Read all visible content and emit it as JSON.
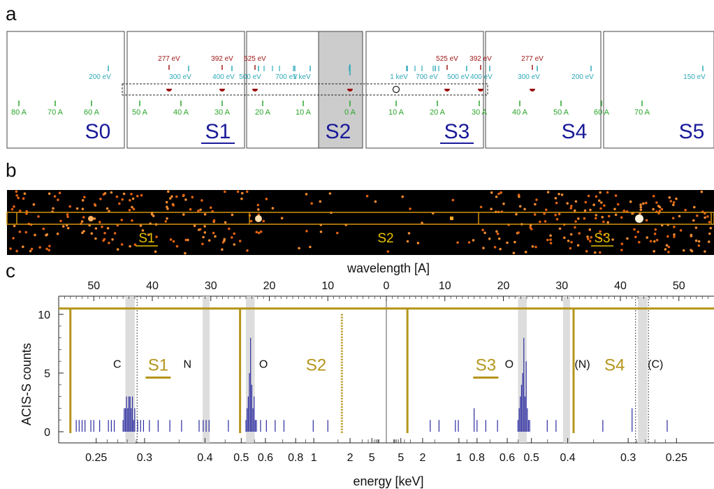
{
  "panels": {
    "a": "a",
    "b": "b",
    "c": "c"
  },
  "colors": {
    "chip_label": "#1a1a99",
    "wavelength_tick": "#2aa52a",
    "energy_tick_teal": "#2ea8b8",
    "energy_tick_red": "#a01818",
    "marker_red": "#9a1010",
    "s2_fill": "#cccccc",
    "grating": "#b5951c",
    "spectrum_line": "#2a2aa0",
    "band_gray": "#d4d4d4",
    "image_bg": "#000000",
    "image_box": "#d4920e",
    "image_label": "#e8c000"
  },
  "panel_a": {
    "chips": [
      {
        "name": "S0",
        "underline": false,
        "highlight": false
      },
      {
        "name": "S1",
        "underline": true,
        "highlight": false
      },
      {
        "name": "S2",
        "underline": false,
        "highlight": true
      },
      {
        "name": "S3",
        "underline": true,
        "highlight": false
      },
      {
        "name": "S4",
        "underline": false,
        "highlight": false
      },
      {
        "name": "S5",
        "underline": false,
        "highlight": false
      }
    ],
    "wavelength_ticks": [
      "80 A",
      "70 A",
      "60 A",
      "50 A",
      "40 A",
      "30 A",
      "20 A",
      "10 A",
      "0 A",
      "10 A",
      "20 A",
      "30 A",
      "40 A",
      "50 A",
      "60 A",
      "70 A",
      "80 A"
    ],
    "energy_labels_teal": [
      "200 eV",
      "300 eV",
      "400 eV",
      "500 eV",
      "700 eV",
      "1 keV",
      "1 keV",
      "700 eV",
      "500 eV",
      "400 eV",
      "300 eV",
      "200 eV",
      "150 eV"
    ],
    "energy_labels_red": [
      "277 eV",
      "392 eV",
      "525 eV",
      "525 eV",
      "392 eV",
      "277 eV"
    ]
  },
  "panel_b": {
    "labels": [
      {
        "text": "S1",
        "underline": true
      },
      {
        "text": "S2",
        "underline": false
      },
      {
        "text": "S3",
        "underline": true
      }
    ]
  },
  "chart_data": {
    "type": "bar",
    "title": "",
    "top_axis_label": "wavelength  [A]",
    "xlabel": "energy  [keV]",
    "ylabel": "ACIS-S  counts",
    "ylim": [
      0,
      11
    ],
    "wavelength_ticks": [
      "50",
      "40",
      "30",
      "20",
      "10",
      "0",
      "10",
      "20",
      "30",
      "40",
      "50"
    ],
    "wavelength_values": [
      -50,
      -40,
      -30,
      -20,
      -10,
      0,
      10,
      20,
      30,
      40,
      50
    ],
    "xlim_wavelength": [
      -56,
      56
    ],
    "y_ticks": [
      "0",
      "5",
      "10"
    ],
    "energy_ticks_left": [
      "0.25",
      "0.3",
      "0.4",
      "0.5",
      "0.6",
      "0.8",
      "1",
      "2",
      "5"
    ],
    "energy_ticks_right": [
      "5",
      "2",
      "1",
      "0.8",
      "0.6",
      "0.5",
      "0.4",
      "0.3",
      "0.25"
    ],
    "lines": [
      "C",
      "N",
      "O",
      "O",
      "(N)",
      "(C)"
    ],
    "chip_labels": [
      {
        "text": "S1",
        "underline": true
      },
      {
        "text": "S2",
        "underline": false
      },
      {
        "text": "S3",
        "underline": true
      },
      {
        "text": "S4",
        "underline": false
      }
    ],
    "chip_boundaries_wavelength": [
      -54,
      -25,
      3.6,
      32
    ],
    "s2_dotted_wavelength": -7.6,
    "grating_level": 10.5,
    "spectrum": {
      "wavelength": [
        -53,
        -52.5,
        -52,
        -51.5,
        -50.5,
        -50,
        -49,
        -47.5,
        -47,
        -46.5,
        -45,
        -44.8,
        -44.6,
        -44.4,
        -44.2,
        -44,
        -43.8,
        -43.6,
        -43.4,
        -43.2,
        -43,
        -42.5,
        -42,
        -41.5,
        -40.5,
        -39,
        -37,
        -35,
        -32,
        -31.3,
        -30.8,
        -30.3,
        -27,
        -24,
        -23.8,
        -23.6,
        -23.4,
        -23.2,
        -23,
        -22.8,
        -22.6,
        -22.4,
        -22.2,
        -21.5,
        -20.5,
        -19,
        -17.5,
        -12.5,
        -10,
        7.5,
        9,
        11.8,
        12.3,
        15,
        15.5,
        17,
        19,
        22.5,
        22.7,
        22.9,
        23.1,
        23.3,
        23.5,
        23.7,
        23.9,
        24.1,
        24.3,
        24.5,
        27.5,
        29,
        37,
        42,
        48
      ],
      "counts": [
        1,
        1,
        1,
        1,
        1,
        1,
        1,
        1,
        1,
        1,
        1,
        2,
        2,
        3,
        2,
        3,
        3,
        2,
        3,
        1,
        2,
        1,
        1,
        1,
        1,
        1,
        1,
        1,
        1,
        1,
        1,
        1,
        1,
        1,
        2,
        3,
        5,
        8,
        4,
        2,
        3,
        1,
        1,
        1,
        1,
        1,
        1,
        1,
        1,
        1,
        1,
        1,
        1,
        2,
        1,
        1,
        1,
        1,
        2,
        3,
        4,
        5,
        8,
        3,
        6,
        2,
        1,
        1,
        1,
        1,
        1,
        2,
        1
      ]
    }
  }
}
